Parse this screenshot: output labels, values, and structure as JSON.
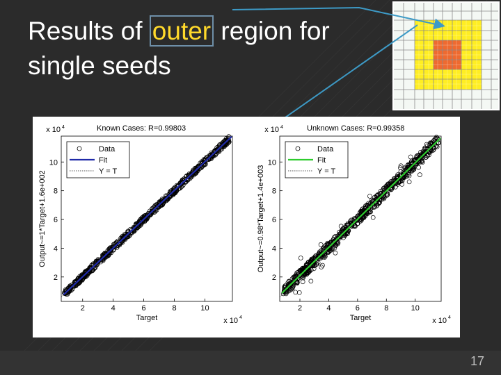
{
  "slide": {
    "title_before": "Results of ",
    "title_highlight": "outer",
    "title_after": " region for",
    "title_line2": "single seeds",
    "page_number": "17"
  },
  "colors": {
    "background": "#2b2b2b",
    "title": "#ffffff",
    "highlight": "#ffd92b",
    "arrow": "#3d9ac6",
    "inset_yellow": "#ffee22",
    "inset_orange": "#ee6a30"
  },
  "chart_data": [
    {
      "type": "scatter",
      "title": "Known Cases: R=0.99803",
      "xlabel": "Target",
      "ylabel": "Output~=1*Target+1.6e+002",
      "x_multiplier": "x 10",
      "x_multiplier_exp": "4",
      "y_multiplier": "x 10",
      "y_multiplier_exp": "4",
      "xlim": [
        0.6,
        11.8
      ],
      "ylim": [
        0.3,
        11.8
      ],
      "xticks": [
        "2",
        "4",
        "6",
        "8",
        "10"
      ],
      "yticks": [
        "2",
        "4",
        "6",
        "8",
        "10"
      ],
      "x": [
        0.8,
        1.2,
        1.6,
        2.0,
        2.5,
        3.0,
        3.5,
        4.0,
        4.5,
        5.0,
        5.5,
        6.0,
        6.5,
        7.0,
        7.5,
        8.0,
        8.5,
        9.0,
        9.5,
        10.0,
        10.5,
        11.0,
        11.3
      ],
      "y": [
        0.9,
        1.3,
        1.7,
        2.1,
        2.6,
        3.1,
        3.5,
        4.1,
        4.6,
        5.0,
        5.6,
        6.1,
        6.5,
        7.1,
        7.5,
        8.1,
        8.6,
        9.0,
        9.6,
        10.1,
        10.5,
        11.0,
        11.3
      ],
      "fit": {
        "slope": 1.0,
        "intercept": 0.016
      },
      "legend": [
        "Data",
        "Fit",
        "Y = T"
      ],
      "legend_position": "top-left",
      "series_colors": {
        "data": "#000000",
        "fit": "#1f2aa8",
        "yt": "#555555"
      },
      "grid": false
    },
    {
      "type": "scatter",
      "title": "Unknown Cases: R=0.99358",
      "xlabel": "Target",
      "ylabel": "Output~=0.98*Target+1.4e+003",
      "x_multiplier": "x 10",
      "x_multiplier_exp": "4",
      "y_multiplier": "x 10",
      "y_multiplier_exp": "4",
      "xlim": [
        0.6,
        11.8
      ],
      "ylim": [
        0.3,
        11.8
      ],
      "xticks": [
        "2",
        "4",
        "6",
        "8",
        "10"
      ],
      "yticks": [
        "2",
        "4",
        "6",
        "8",
        "10"
      ],
      "x": [
        0.9,
        1.3,
        1.8,
        2.3,
        2.8,
        3.3,
        3.8,
        4.3,
        4.8,
        5.3,
        5.8,
        6.3,
        6.8,
        7.3,
        7.8,
        8.3,
        8.8,
        9.3,
        9.8,
        10.3,
        10.8,
        11.3
      ],
      "y": [
        1.0,
        1.5,
        2.0,
        2.6,
        3.0,
        3.6,
        4.0,
        4.4,
        5.0,
        5.6,
        5.9,
        6.4,
        7.0,
        7.4,
        7.9,
        8.5,
        8.9,
        9.4,
        9.9,
        10.3,
        10.9,
        11.5
      ],
      "fit": {
        "slope": 0.98,
        "intercept": 0.14
      },
      "legend": [
        "Data",
        "Fit",
        "Y = T"
      ],
      "legend_position": "top-left",
      "series_colors": {
        "data": "#000000",
        "fit": "#2ecc2e",
        "yt": "#555555"
      },
      "grid": false
    }
  ]
}
